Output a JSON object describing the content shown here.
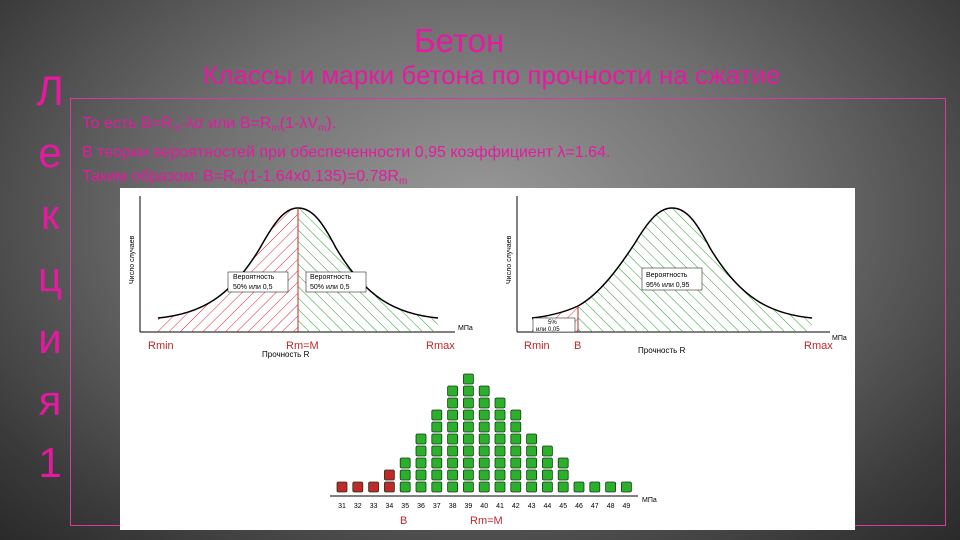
{
  "vertical_word": [
    "Л",
    "е",
    "к",
    "ц",
    "и",
    "я",
    "1"
  ],
  "title": "Бетон",
  "subtitle": "Классы и марки бетона по прочности на сжатие",
  "text_lines": {
    "line1": {
      "a": "То есть  B=R",
      "sub1": "m",
      "b": "-λσ  или  B=R",
      "sub2": "m",
      "c": "(1-λV",
      "sub3": "m",
      "d": ")."
    },
    "line2": "В теории вероятностей при обеспеченности 0,95 коэффициент λ=1.64.",
    "line3": {
      "a": "Таким образом: B=R",
      "sub1": "m",
      "b": "(1-1.64x0.135)=0.78R",
      "sub2": "m"
    }
  },
  "figure": {
    "left_chart": {
      "y_axis_label": "Число случаев",
      "x_axis_unit": "МПа",
      "x_axis_label": "Прочность R",
      "marks": [
        "Rmin",
        "Rm=M",
        "Rmax"
      ],
      "left_note": [
        "Вероятность",
        "50% или 0,5"
      ],
      "right_note": [
        "Вероятность",
        "50% или 0,5"
      ],
      "colors": {
        "left_hatch": "#d9263a",
        "right_hatch": "#2a9d2a",
        "curve": "#000000"
      }
    },
    "right_chart": {
      "y_axis_label": "Число случаев",
      "x_axis_unit": "МПа",
      "x_axis_label": "Прочность R",
      "marks": [
        "Rmin",
        "B",
        "Rmax"
      ],
      "small_note": [
        "5%",
        "или 0,05"
      ],
      "big_note": [
        "Вероятность",
        "95% или 0,95"
      ],
      "colors": {
        "left_hatch": "#d9263a",
        "right_hatch": "#2a9d2a",
        "curve": "#000000"
      }
    },
    "histogram": {
      "x_unit": "МПа",
      "x_ticks": [
        "31",
        "32",
        "33",
        "34",
        "35",
        "36",
        "37",
        "38",
        "39",
        "40",
        "41",
        "42",
        "43",
        "44",
        "45",
        "46",
        "47",
        "48",
        "49"
      ],
      "counts": [
        1,
        1,
        1,
        2,
        3,
        5,
        7,
        9,
        10,
        9,
        8,
        7,
        5,
        4,
        3,
        1,
        1,
        1,
        1
      ],
      "red_columns": 4,
      "marks": [
        "B",
        "Rm=M"
      ],
      "colors": {
        "red": "#c0282a",
        "green": "#2ab02a",
        "outline": "#1a3a1a"
      }
    }
  }
}
